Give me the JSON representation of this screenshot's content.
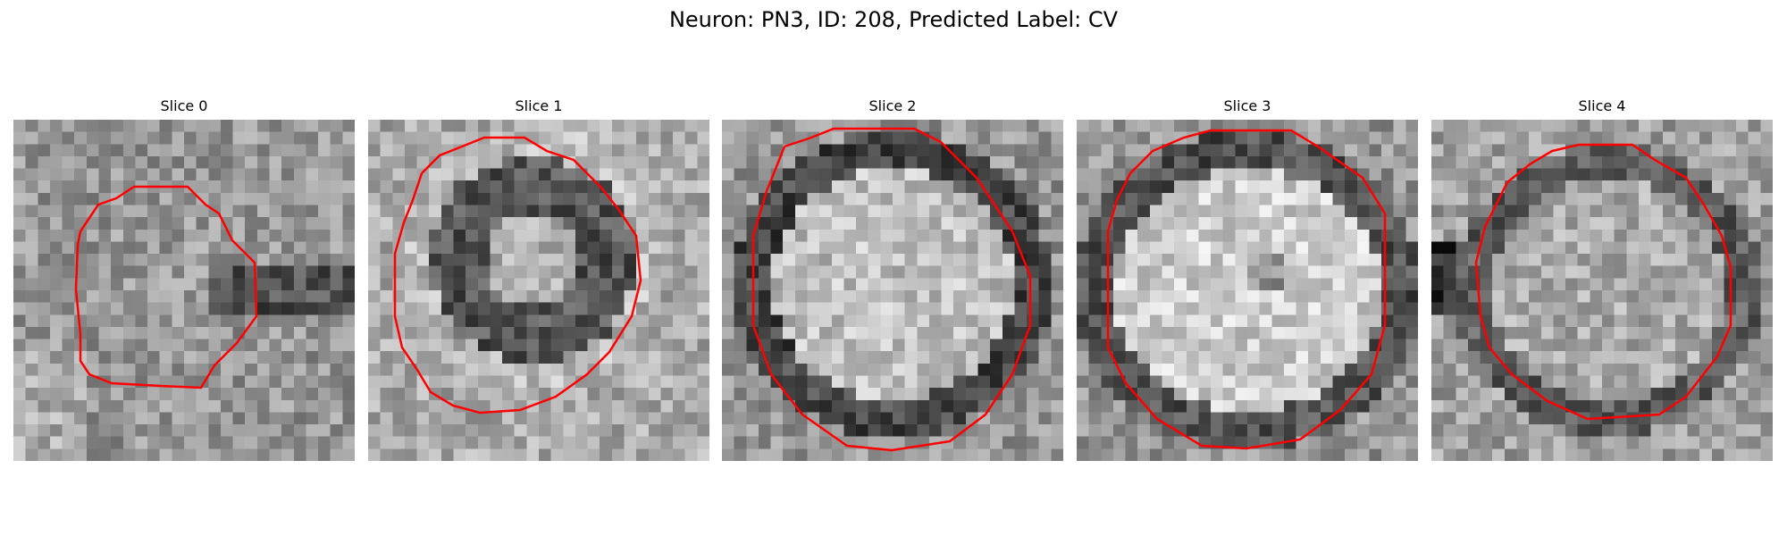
{
  "figure": {
    "title": "Neuron: PN3, ID: 208, Predicted Label: CV",
    "contour_color": "#ff0000",
    "panels": [
      {
        "label": "Slice 0"
      },
      {
        "label": "Slice 1"
      },
      {
        "label": "Slice 2"
      },
      {
        "label": "Slice 3"
      },
      {
        "label": "Slice 4"
      }
    ]
  }
}
